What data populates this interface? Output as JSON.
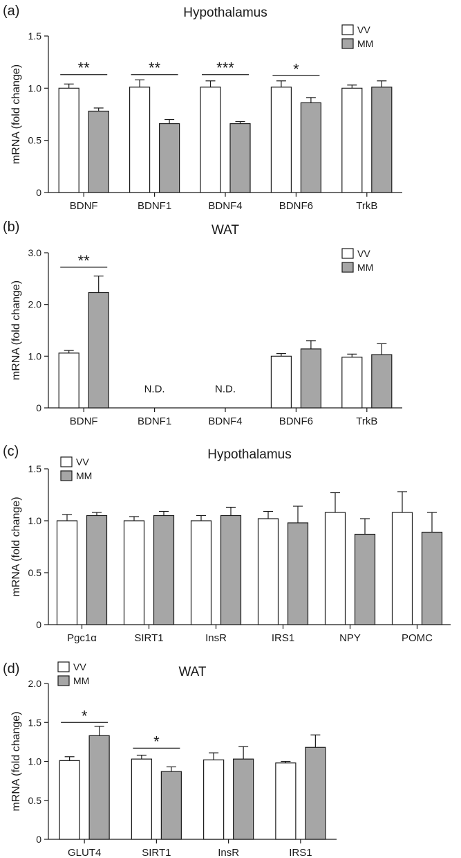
{
  "chart_data": [
    {
      "type": "bar",
      "panel_label": "(a)",
      "title": "Hypothalamus",
      "ylabel": "mRNA  (fold change)",
      "xlabel": "",
      "ylim": [
        0,
        1.5
      ],
      "yticks": [
        "0",
        "0.5",
        "1.0",
        "1.5"
      ],
      "categories": [
        "BDNF",
        "BDNF1",
        "BDNF4",
        "BDNF6",
        "TrkB"
      ],
      "legend_position": "top-right",
      "series": [
        {
          "name": "VV",
          "color": "#ffffff",
          "values": [
            1.0,
            1.01,
            1.01,
            1.01,
            1.0
          ],
          "errors": [
            0.04,
            0.07,
            0.06,
            0.06,
            0.03
          ]
        },
        {
          "name": "MM",
          "color": "#a6a6a6",
          "values": [
            0.78,
            0.66,
            0.66,
            0.86,
            1.01
          ],
          "errors": [
            0.03,
            0.04,
            0.02,
            0.05,
            0.06
          ]
        }
      ],
      "significance": [
        {
          "category": 0,
          "label": "**",
          "y": 1.13
        },
        {
          "category": 1,
          "label": "**",
          "y": 1.13
        },
        {
          "category": 2,
          "label": "***",
          "y": 1.13
        },
        {
          "category": 3,
          "label": "*",
          "y": 1.12
        }
      ],
      "annotations": []
    },
    {
      "type": "bar",
      "panel_label": "(b)",
      "title": "WAT",
      "ylabel": "mRNA  (fold change)",
      "xlabel": "",
      "ylim": [
        0,
        3.0
      ],
      "yticks": [
        "0",
        "1.0",
        "2.0",
        "3.0"
      ],
      "categories": [
        "BDNF",
        "BDNF1",
        "BDNF4",
        "BDNF6",
        "TrkB"
      ],
      "legend_position": "top-right",
      "series": [
        {
          "name": "VV",
          "color": "#ffffff",
          "values": [
            1.06,
            null,
            null,
            1.0,
            0.98
          ],
          "errors": [
            0.05,
            null,
            null,
            0.05,
            0.06
          ]
        },
        {
          "name": "MM",
          "color": "#a6a6a6",
          "values": [
            2.23,
            null,
            null,
            1.14,
            1.03
          ],
          "errors": [
            0.32,
            null,
            null,
            0.16,
            0.21
          ]
        }
      ],
      "significance": [
        {
          "category": 0,
          "label": "**",
          "y": 2.72
        }
      ],
      "annotations": [
        {
          "category": 1,
          "label": "N.D.",
          "y": 0.3
        },
        {
          "category": 2,
          "label": "N.D.",
          "y": 0.3
        }
      ]
    },
    {
      "type": "bar",
      "panel_label": "(c)",
      "title": "Hypothalamus",
      "ylabel": "mRNA  (fold change)",
      "xlabel": "",
      "ylim": [
        0,
        1.5
      ],
      "yticks": [
        "0",
        "0.5",
        "1.0",
        "1.5"
      ],
      "categories": [
        "Pgc1α",
        "SIRT1",
        "InsR",
        "IRS1",
        "NPY",
        "POMC"
      ],
      "legend_position": "top-left",
      "series": [
        {
          "name": "VV",
          "color": "#ffffff",
          "values": [
            1.0,
            1.0,
            1.0,
            1.02,
            1.08,
            1.08
          ],
          "errors": [
            0.06,
            0.04,
            0.05,
            0.07,
            0.19,
            0.2
          ]
        },
        {
          "name": "MM",
          "color": "#a6a6a6",
          "values": [
            1.05,
            1.05,
            1.05,
            0.98,
            0.87,
            0.89
          ],
          "errors": [
            0.03,
            0.04,
            0.08,
            0.16,
            0.15,
            0.19
          ]
        }
      ],
      "significance": [],
      "annotations": []
    },
    {
      "type": "bar",
      "panel_label": "(d)",
      "title": "WAT",
      "ylabel": "mRNA  (fold change)",
      "xlabel": "",
      "ylim": [
        0,
        2.0
      ],
      "yticks": [
        "0",
        "0.5",
        "1.0",
        "1.5",
        "2.0"
      ],
      "categories": [
        "GLUT4",
        "SIRT1",
        "InsR",
        "IRS1"
      ],
      "legend_position": "top-left",
      "series": [
        {
          "name": "VV",
          "color": "#ffffff",
          "values": [
            1.01,
            1.03,
            1.02,
            0.98
          ],
          "errors": [
            0.05,
            0.05,
            0.09,
            0.02
          ]
        },
        {
          "name": "MM",
          "color": "#a6a6a6",
          "values": [
            1.33,
            0.87,
            1.03,
            1.18
          ],
          "errors": [
            0.12,
            0.06,
            0.16,
            0.16
          ]
        }
      ],
      "significance": [
        {
          "category": 0,
          "label": "*",
          "y": 1.5
        },
        {
          "category": 1,
          "label": "*",
          "y": 1.17
        }
      ],
      "annotations": []
    }
  ]
}
